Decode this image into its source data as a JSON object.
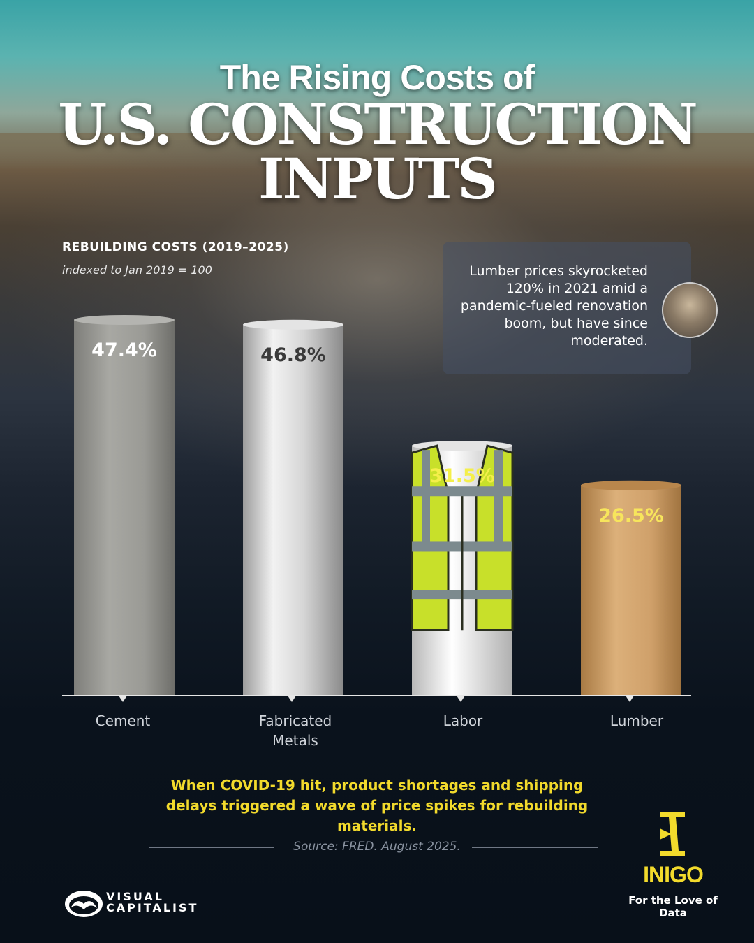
{
  "title": {
    "line1": "The Rising Costs of",
    "line2": "U.S. CONSTRUCTION",
    "line3": "INPUTS"
  },
  "subtitle": {
    "heading": "REBUILDING COSTS (2019–2025)",
    "note": "indexed to Jan 2019 = 100"
  },
  "annotation": {
    "text": "Lumber prices skyrocketed 120% in 2021 amid a pandemic-fueled renovation boom, but have since moderated."
  },
  "chart_data": {
    "type": "bar",
    "categories": [
      "Cement",
      "Fabricated Metals",
      "Labor",
      "Lumber"
    ],
    "values": [
      47.4,
      46.8,
      31.5,
      26.5
    ],
    "value_labels": [
      "47.4%",
      "46.8%",
      "31.5%",
      "26.5%"
    ],
    "ylim": [
      0,
      50
    ],
    "grid": false,
    "legend": "none",
    "bar_colors": [
      "#9a9a96",
      "#dcdcdc",
      "#e8e8e8",
      "#c89a5e"
    ],
    "label_colors": [
      "#ffffff",
      "#3a3a3a",
      "#f4ef4a",
      "#f7e55c"
    ]
  },
  "footer": {
    "highlight": "When COVID-19 hit, product shortages and shipping delays triggered a wave of price spikes for rebuilding materials.",
    "source": "Source: FRED. August 2025."
  },
  "brand": {
    "vc_line1": "VISUAL",
    "vc_line2": "CAPITALIST",
    "partner_name": "INIGO",
    "partner_tagline": "For the Love of Data",
    "accent_color": "#f2da2c"
  }
}
